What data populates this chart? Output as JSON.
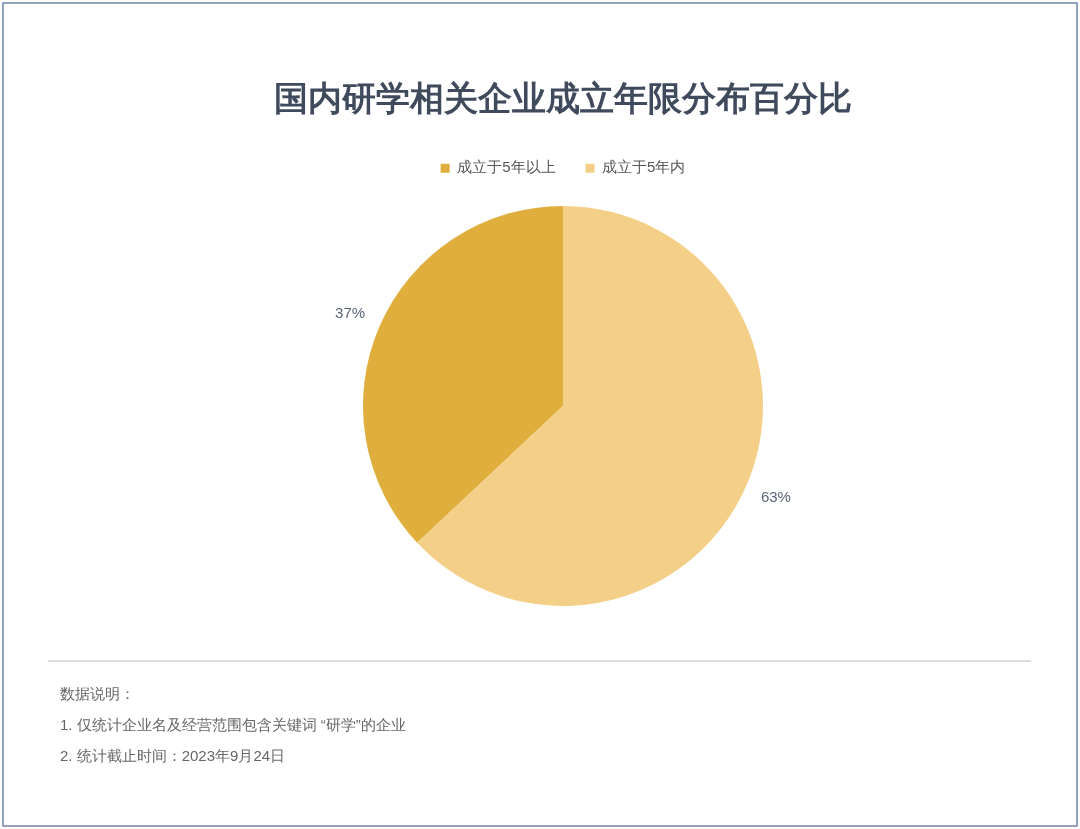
{
  "chart_data": {
    "type": "pie",
    "title": "国内研学相关企业成立年限分布百分比",
    "categories": [
      "成立于5年以上",
      "成立于5年内"
    ],
    "values": [
      37,
      63
    ],
    "colors": [
      "#e0ae3c",
      "#f3cf88"
    ],
    "value_labels": [
      "37%",
      "63%"
    ],
    "legend": "top",
    "annotations": [
      "数据说明：",
      "1. 仅统计企业名及经营范围包含关键词 “研学”的企业",
      "2. 统计截止时间：2023年9月24日"
    ]
  }
}
